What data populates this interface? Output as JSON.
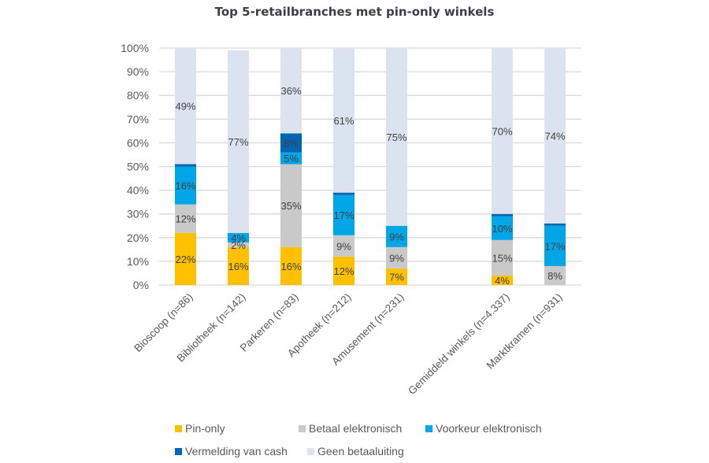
{
  "chart_data": {
    "type": "bar",
    "stacked": true,
    "title": "Top 5-retailbranches met pin-only winkels",
    "xlabel": "",
    "ylabel": "",
    "ylim": [
      0,
      100
    ],
    "yticks": [
      "0%",
      "10%",
      "20%",
      "30%",
      "40%",
      "50%",
      "60%",
      "70%",
      "80%",
      "90%",
      "100%"
    ],
    "grid": true,
    "legend_position": "bottom",
    "categories": [
      "Bioscoop (n=86)",
      "Bibliotheek (n=142)",
      "Parkeren (n=83)",
      "Apotheek (n=212)",
      "Amusement  (n=231)",
      "",
      "Gemiddeld  winkels (n=4.337)",
      "Marktkramen (n=931)"
    ],
    "series": [
      {
        "name": "Pin-only",
        "color": "#FFC000",
        "values": [
          22,
          16,
          16,
          12,
          7,
          null,
          4,
          0
        ],
        "labels": [
          "22%",
          "16%",
          "16%",
          "12%",
          "7%",
          "",
          "4%",
          ""
        ]
      },
      {
        "name": "Betaal elektronisch",
        "color": "#C9C9C9",
        "values": [
          12,
          2,
          35,
          9,
          9,
          null,
          15,
          8
        ],
        "labels": [
          "12%",
          "2%",
          "35%",
          "9%",
          "9%",
          "",
          "15%",
          "8%"
        ]
      },
      {
        "name": "Voorkeur elektronisch",
        "color": "#00A6E6",
        "values": [
          16,
          4,
          5,
          17,
          9,
          null,
          10,
          17
        ],
        "labels": [
          "16%",
          "4%",
          "5%",
          "17%",
          "9%",
          "",
          "10%",
          "17%"
        ]
      },
      {
        "name": "Vermelding van cash",
        "color": "#0066B3",
        "values": [
          1,
          0,
          8,
          1,
          0,
          null,
          1,
          1
        ],
        "labels": [
          "",
          "",
          "8%",
          "",
          "",
          "",
          "",
          ""
        ]
      },
      {
        "name": "Geen betaaluiting",
        "color": "#DCE3F0",
        "values": [
          49,
          77,
          36,
          61,
          75,
          null,
          70,
          74
        ],
        "labels": [
          "49%",
          "77%",
          "36%",
          "61%",
          "75%",
          "",
          "70%",
          "74%"
        ]
      }
    ]
  }
}
